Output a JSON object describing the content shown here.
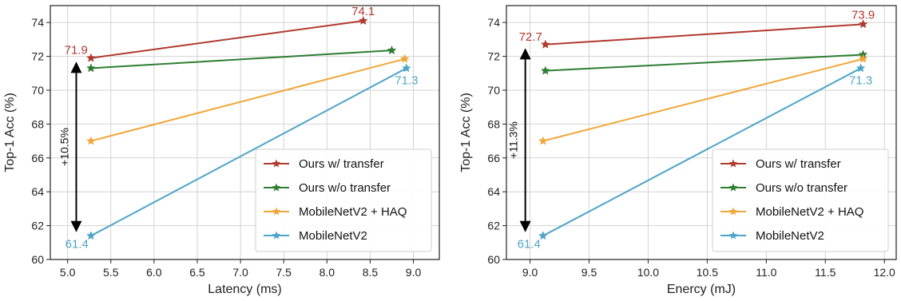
{
  "chart_data": [
    {
      "type": "line",
      "xlabel": "Latency (ms)",
      "ylabel": "Top-1 Acc (%)",
      "xlim": [
        4.8,
        9.3
      ],
      "ylim": [
        60,
        75
      ],
      "xticks": [
        5.0,
        5.5,
        6.0,
        6.5,
        7.0,
        7.5,
        8.0,
        8.5,
        9.0
      ],
      "xtick_labels": [
        "5.0",
        "5.5",
        "6.0",
        "6.5",
        "7.0",
        "7.5",
        "8.0",
        "8.5",
        "9.0"
      ],
      "yticks": [
        60,
        62,
        64,
        66,
        68,
        70,
        72,
        74
      ],
      "ytick_labels": [
        "60",
        "62",
        "64",
        "66",
        "68",
        "70",
        "72",
        "74"
      ],
      "grid": true,
      "legend_position": "lower-right",
      "series": [
        {
          "name": "Ours w/ transfer",
          "color": "#b03a2e",
          "x": [
            5.27,
            8.42
          ],
          "y": [
            71.9,
            74.1
          ]
        },
        {
          "name": "Ours w/o transfer",
          "color": "#2e7d32",
          "x": [
            5.27,
            8.75
          ],
          "y": [
            71.3,
            72.35
          ]
        },
        {
          "name": "MobileNetV2 + HAQ",
          "color": "#f0a73a",
          "x": [
            5.27,
            8.9
          ],
          "y": [
            67.0,
            71.85
          ]
        },
        {
          "name": "MobileNetV2",
          "color": "#4ea4c8",
          "x": [
            5.27,
            8.92
          ],
          "y": [
            61.4,
            71.3
          ]
        }
      ],
      "data_labels": [
        {
          "text": "74.1",
          "x": 8.42,
          "y": 74.1,
          "color": "#b03a2e",
          "anchor": "above"
        },
        {
          "text": "71.9",
          "x": 5.27,
          "y": 71.9,
          "color": "#b03a2e",
          "anchor": "above-left"
        },
        {
          "text": "71.3",
          "x": 8.92,
          "y": 71.3,
          "color": "#4ea4c8",
          "anchor": "below"
        },
        {
          "text": "61.4",
          "x": 5.27,
          "y": 61.4,
          "color": "#4ea4c8",
          "anchor": "below-left"
        }
      ],
      "annotation": {
        "text": "+10.5%",
        "x": 5.1,
        "y_from": 61.4,
        "y_to": 71.9
      }
    },
    {
      "type": "line",
      "xlabel": "Enercy (mJ)",
      "ylabel": "Top-1 Acc (%)",
      "xlim": [
        8.8,
        12.1
      ],
      "ylim": [
        60,
        75
      ],
      "xticks": [
        9.0,
        9.5,
        10.0,
        10.5,
        11.0,
        11.5,
        12.0
      ],
      "xtick_labels": [
        "9.0",
        "9.5",
        "10.0",
        "10.5",
        "11.0",
        "11.5",
        "12.0"
      ],
      "yticks": [
        60,
        62,
        64,
        66,
        68,
        70,
        72,
        74
      ],
      "ytick_labels": [
        "60",
        "62",
        "64",
        "66",
        "68",
        "70",
        "72",
        "74"
      ],
      "grid": true,
      "legend_position": "lower-right",
      "series": [
        {
          "name": "Ours w/ transfer",
          "color": "#b03a2e",
          "x": [
            9.13,
            11.82
          ],
          "y": [
            72.7,
            73.9
          ]
        },
        {
          "name": "Ours w/o transfer",
          "color": "#2e7d32",
          "x": [
            9.13,
            11.82
          ],
          "y": [
            71.15,
            72.1
          ]
        },
        {
          "name": "MobileNetV2 + HAQ",
          "color": "#f0a73a",
          "x": [
            9.11,
            11.82
          ],
          "y": [
            67.0,
            71.85
          ]
        },
        {
          "name": "MobileNetV2",
          "color": "#4ea4c8",
          "x": [
            9.11,
            11.8
          ],
          "y": [
            61.4,
            71.3
          ]
        }
      ],
      "data_labels": [
        {
          "text": "73.9",
          "x": 11.82,
          "y": 73.9,
          "color": "#b03a2e",
          "anchor": "above"
        },
        {
          "text": "72.7",
          "x": 9.13,
          "y": 72.7,
          "color": "#b03a2e",
          "anchor": "above-left"
        },
        {
          "text": "71.3",
          "x": 11.8,
          "y": 71.3,
          "color": "#4ea4c8",
          "anchor": "below"
        },
        {
          "text": "61.4",
          "x": 9.11,
          "y": 61.4,
          "color": "#4ea4c8",
          "anchor": "below-left"
        }
      ],
      "annotation": {
        "text": "+11.3%",
        "x": 8.96,
        "y_from": 61.4,
        "y_to": 72.7
      }
    }
  ]
}
